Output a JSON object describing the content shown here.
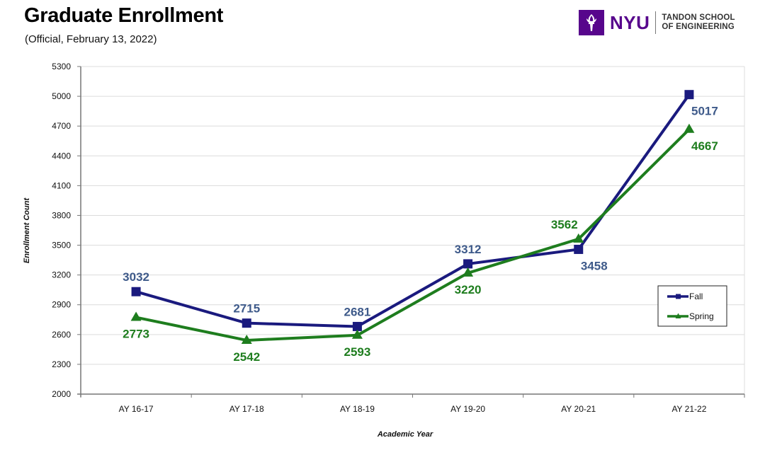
{
  "header": {
    "title": "Graduate Enrollment",
    "subtitle": "(Official, February 13, 2022)"
  },
  "logo": {
    "mark": "NYU",
    "school_line1": "TANDON SCHOOL",
    "school_line2": "OF ENGINEERING",
    "brand_color": "#57068c",
    "icon": "torch-icon"
  },
  "chart_data": {
    "type": "line",
    "title": "Graduate Enrollment",
    "subtitle": "(Official, February 13, 2022)",
    "xlabel": "Academic Year",
    "ylabel": "Enrollment Count",
    "categories": [
      "AY 16-17",
      "AY 17-18",
      "AY 18-19",
      "AY 19-20",
      "AY 20-21",
      "AY 21-22"
    ],
    "ylim": [
      2000,
      5300
    ],
    "yticks": [
      2000,
      2300,
      2600,
      2900,
      3200,
      3500,
      3800,
      4100,
      4400,
      4700,
      5000,
      5300
    ],
    "grid": true,
    "legend_position": "right",
    "series": [
      {
        "name": "Fall",
        "marker": "square",
        "color": "#1a1a7e",
        "label_color": "#3e5a8a",
        "values": [
          3032,
          2715,
          2681,
          3312,
          3458,
          5017
        ],
        "label_position": [
          "above",
          "above",
          "above",
          "above",
          "below",
          "below"
        ]
      },
      {
        "name": "Spring",
        "marker": "triangle",
        "color": "#1e7d1e",
        "label_color": "#1e7d1e",
        "values": [
          2773,
          2542,
          2593,
          3220,
          3562,
          4667
        ],
        "label_position": [
          "below",
          "below",
          "below",
          "below",
          "above",
          "below"
        ]
      }
    ]
  }
}
